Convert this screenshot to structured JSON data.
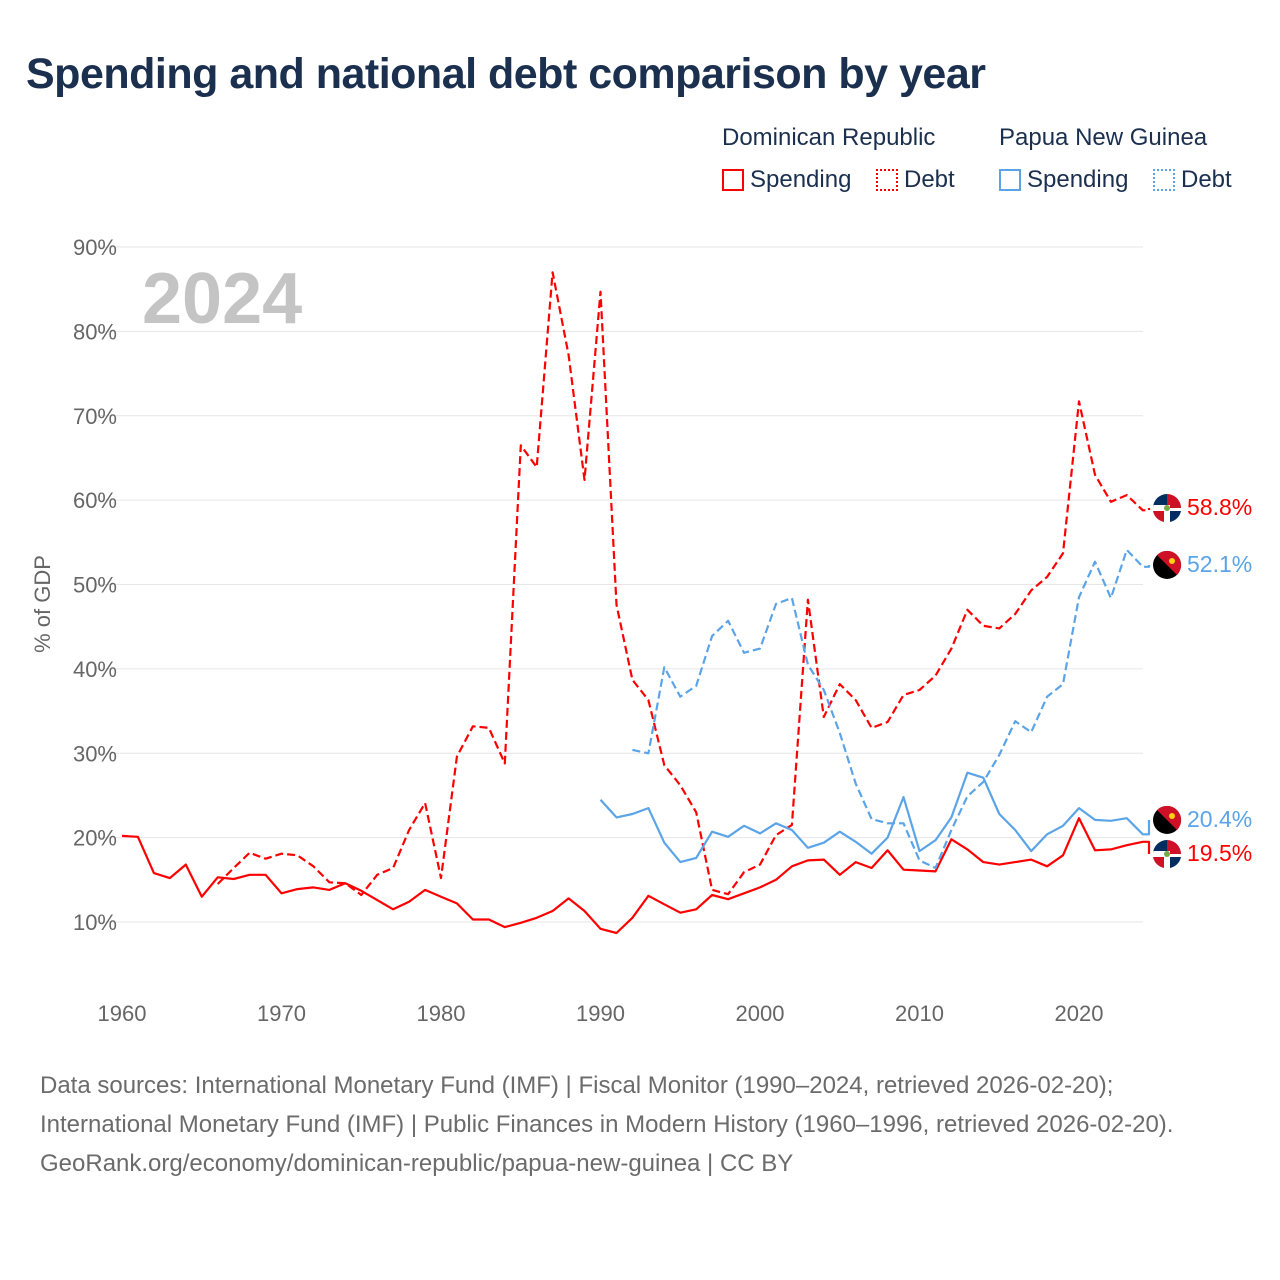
{
  "title": "Spending and national debt comparison by year",
  "legend": {
    "groups": [
      {
        "country": "Dominican Republic",
        "items": [
          "Spending",
          "Debt"
        ],
        "color": "#ff0000"
      },
      {
        "country": "Papua New Guinea",
        "items": [
          "Spending",
          "Debt"
        ],
        "color": "#5ba4e8"
      }
    ]
  },
  "year_label": "2024",
  "end_labels": {
    "dr_debt": "58.8%",
    "png_debt": "52.1%",
    "png_spending": "20.4%",
    "dr_spending": "19.5%"
  },
  "sources": {
    "line1": "Data sources: International Monetary Fund (IMF) | Fiscal Monitor (1990–2024, retrieved 2026-02-20);",
    "line2": "International Monetary Fund (IMF) | Public Finances in Modern History (1960–1996, retrieved 2026-02-20).",
    "line3": "GeoRank.org/economy/dominican-republic/papua-new-guinea | CC BY"
  },
  "chart_data": {
    "type": "line",
    "title": "Spending and national debt comparison by year",
    "xlabel": "",
    "ylabel": "% of GDP",
    "xlim": [
      1960,
      2024
    ],
    "ylim": [
      0,
      90
    ],
    "xticks": [
      "1960",
      "1970",
      "1980",
      "1990",
      "2000",
      "2010",
      "2020"
    ],
    "yticks": [
      "10%",
      "20%",
      "30%",
      "40%",
      "50%",
      "60%",
      "70%",
      "80%",
      "90%"
    ],
    "grid": true,
    "series": [
      {
        "name": "Dominican Republic Spending",
        "color": "#ff0000",
        "dash": false,
        "start": 1960,
        "values": [
          20.2,
          20.1,
          15.8,
          15.2,
          16.8,
          13,
          15.3,
          15.1,
          15.6,
          15.6,
          13.4,
          13.9,
          14.1,
          13.8,
          14.6,
          13.7,
          12.6,
          11.5,
          12.4,
          13.8,
          13,
          12.2,
          10.3,
          10.3,
          9.4,
          9.9,
          10.5,
          11.3,
          12.8,
          11.3,
          9.2,
          8.7,
          10.5,
          13.1,
          12.1,
          11.1,
          11.5,
          13.2,
          12.7,
          13.4,
          14.1,
          15,
          16.6,
          17.3,
          17.4,
          15.6,
          17.1,
          16.4,
          18.5,
          16.2,
          16.1,
          16,
          19.8,
          18.6,
          17.1,
          16.8,
          17.1,
          17.4,
          16.6,
          17.9,
          22.3,
          18.5,
          18.6,
          19.1,
          19.5
        ]
      },
      {
        "name": "Dominican Republic Debt",
        "color": "#ff0000",
        "dash": true,
        "start": 1966,
        "values": [
          14.5,
          16.4,
          18.2,
          17.5,
          18.1,
          17.9,
          16.6,
          14.7,
          14.6,
          13.2,
          15.6,
          16.4,
          20.9,
          24.1,
          15.2,
          29.6,
          33.2,
          33,
          28.8,
          66.5,
          63.9,
          87,
          77.2,
          62.4,
          84.7,
          47.6,
          38.7,
          36.3,
          28.6,
          26.2,
          23,
          13.8,
          13.3,
          15.9,
          16.8,
          20.3,
          21.5,
          48.2,
          34.3,
          38.2,
          36.3,
          33,
          33.7,
          36.9,
          37.5,
          39.2,
          42.4,
          47,
          45.1,
          44.8,
          46.5,
          49.3,
          50.9,
          53.7,
          71.7,
          63,
          59.8,
          60.6,
          58.8
        ]
      },
      {
        "name": "Papua New Guinea Spending",
        "color": "#5ba4e8",
        "dash": false,
        "start": 1990,
        "values": [
          24.5,
          22.4,
          22.8,
          23.5,
          19.4,
          17.1,
          17.6,
          20.7,
          20.1,
          21.4,
          20.5,
          21.7,
          20.9,
          18.8,
          19.4,
          20.7,
          19.5,
          18.1,
          20,
          24.8,
          18.4,
          19.7,
          22.4,
          27.7,
          27.1,
          22.8,
          20.9,
          18.4,
          20.4,
          21.4,
          23.5,
          22.1,
          22,
          22.3,
          20.4
        ]
      },
      {
        "name": "Papua New Guinea Debt",
        "color": "#5ba4e8",
        "dash": true,
        "start": 1992,
        "values": [
          30.4,
          30,
          40.2,
          36.7,
          38,
          43.9,
          45.7,
          41.9,
          42.4,
          47.7,
          48.4,
          40.5,
          37.5,
          32.4,
          26.4,
          22.2,
          21.7,
          21.7,
          17.3,
          16.4,
          20.9,
          24.9,
          26.6,
          29.8,
          33.8,
          32.5,
          36.7,
          38.2,
          48.5,
          52.7,
          48.4,
          54.1,
          52.1
        ]
      }
    ]
  }
}
